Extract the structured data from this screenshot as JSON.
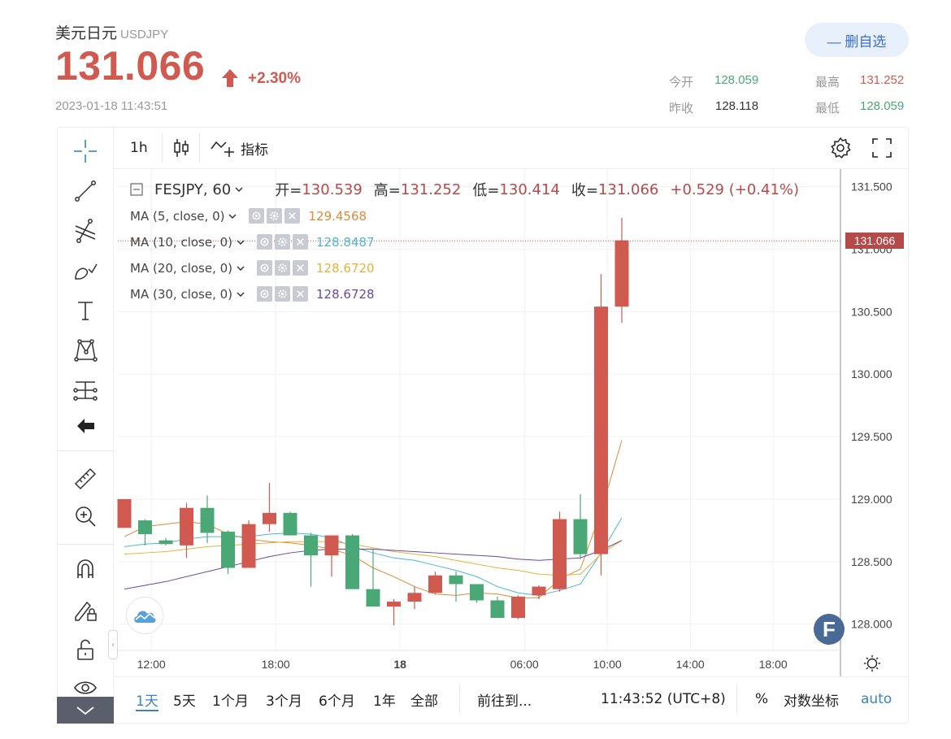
{
  "header": {
    "name": "美元日元",
    "symbol": "USDJPY",
    "price": "131.066",
    "change_pct": "+2.30%",
    "timestamp": "2023-01-18 11:43:51",
    "unfavorite_label": "— 删自选",
    "stats": {
      "open_label": "今开",
      "open_value": "128.059",
      "high_label": "最高",
      "high_value": "131.252",
      "prev_close_label": "昨收",
      "prev_close_value": "128.118",
      "low_label": "最低",
      "low_value": "128.059"
    },
    "colors": {
      "up": "#d05a50",
      "down": "#4aa877",
      "accent": "#3b6ed2"
    }
  },
  "toolbar": {
    "interval": "1h",
    "indicators_label": "指标"
  },
  "left_tools": [
    "crosshair-icon",
    "trend-line-icon",
    "fib-icon",
    "brush-icon",
    "text-icon",
    "pattern-icon",
    "prediction-icon",
    "back-arrow-icon",
    "ruler-icon",
    "zoom-in-icon",
    "magnet-icon",
    "lock-draw-icon",
    "lock-icon",
    "eye-icon"
  ],
  "legend": {
    "symbol": "FESJPY, 60",
    "open_label": "开=",
    "open": "130.539",
    "high_label": "高=",
    "high": "131.252",
    "low_label": "低=",
    "low": "130.414",
    "close_label": "收=",
    "close": "131.066",
    "change": "+0.529 (+0.41%)",
    "ma": [
      {
        "label": "MA (5, close, 0)",
        "value": "129.4568",
        "color": "#e08a3a"
      },
      {
        "label": "MA (10, close, 0)",
        "value": "128.8487",
        "color": "#4fb6d0"
      },
      {
        "label": "MA (20, close, 0)",
        "value": "128.6720",
        "color": "#e4b43a"
      },
      {
        "label": "MA (30, close, 0)",
        "value": "128.6728",
        "color": "#6a4a9a"
      }
    ]
  },
  "chart_data": {
    "type": "candlestick",
    "y_ticks": [
      "131.500",
      "131.000",
      "130.500",
      "130.000",
      "129.500",
      "129.000",
      "128.500",
      "128.000"
    ],
    "ylim": [
      127.79,
      131.64
    ],
    "x_ticks": [
      {
        "label": "12:00",
        "bar": 1.3
      },
      {
        "label": "18:00",
        "bar": 7.3
      },
      {
        "label": "18",
        "bar": 13.3,
        "bold": true
      },
      {
        "label": "06:00",
        "bar": 19.3
      },
      {
        "label": "10:00",
        "bar": 23.3
      },
      {
        "label": "14:00",
        "bar": 27.3
      },
      {
        "label": "18:00",
        "bar": 31.3
      }
    ],
    "current_price": "131.066",
    "candles": [
      {
        "o": 128.77,
        "h": 129.0,
        "l": 128.77,
        "c": 129.0
      },
      {
        "o": 128.83,
        "h": 128.84,
        "l": 128.63,
        "c": 128.72
      },
      {
        "o": 128.67,
        "h": 128.69,
        "l": 128.63,
        "c": 128.64
      },
      {
        "o": 128.63,
        "h": 128.97,
        "l": 128.53,
        "c": 128.93
      },
      {
        "o": 128.93,
        "h": 129.03,
        "l": 128.65,
        "c": 128.73
      },
      {
        "o": 128.74,
        "h": 128.75,
        "l": 128.4,
        "c": 128.45
      },
      {
        "o": 128.45,
        "h": 128.83,
        "l": 128.45,
        "c": 128.8
      },
      {
        "o": 128.8,
        "h": 129.13,
        "l": 128.74,
        "c": 128.89
      },
      {
        "o": 128.89,
        "h": 128.9,
        "l": 128.71,
        "c": 128.71
      },
      {
        "o": 128.71,
        "h": 128.73,
        "l": 128.3,
        "c": 128.55
      },
      {
        "o": 128.55,
        "h": 128.71,
        "l": 128.38,
        "c": 128.71
      },
      {
        "o": 128.71,
        "h": 128.72,
        "l": 128.28,
        "c": 128.28
      },
      {
        "o": 128.28,
        "h": 128.6,
        "l": 128.15,
        "c": 128.14
      },
      {
        "o": 128.14,
        "h": 128.2,
        "l": 127.99,
        "c": 128.18
      },
      {
        "o": 128.18,
        "h": 128.3,
        "l": 128.12,
        "c": 128.25
      },
      {
        "o": 128.25,
        "h": 128.42,
        "l": 128.24,
        "c": 128.39
      },
      {
        "o": 128.39,
        "h": 128.42,
        "l": 128.18,
        "c": 128.32
      },
      {
        "o": 128.32,
        "h": 128.32,
        "l": 128.17,
        "c": 128.19
      },
      {
        "o": 128.19,
        "h": 128.22,
        "l": 128.05,
        "c": 128.05
      },
      {
        "o": 128.05,
        "h": 128.23,
        "l": 128.04,
        "c": 128.22
      },
      {
        "o": 128.23,
        "h": 128.31,
        "l": 128.2,
        "c": 128.3
      },
      {
        "o": 128.28,
        "h": 128.9,
        "l": 128.26,
        "c": 128.84
      },
      {
        "o": 128.84,
        "h": 129.04,
        "l": 128.52,
        "c": 128.56
      },
      {
        "o": 128.56,
        "h": 130.8,
        "l": 128.39,
        "c": 130.54
      },
      {
        "o": 130.54,
        "h": 131.25,
        "l": 130.41,
        "c": 131.07
      }
    ],
    "ma_series": [
      {
        "name": "MA (5, close, 0)",
        "color": "#e08a3a",
        "start": 0,
        "values": [
          128.7,
          128.78,
          128.8,
          128.82,
          128.8,
          128.72,
          128.68,
          128.66,
          128.65,
          128.63,
          128.6,
          128.55,
          128.45,
          128.38,
          128.3,
          128.24,
          128.23,
          128.25,
          128.24,
          128.21,
          128.21,
          128.36,
          128.44,
          128.9,
          129.47
        ]
      },
      {
        "name": "MA (10, close, 0)",
        "color": "#4fb6d0",
        "start": 0,
        "values": [
          128.62,
          128.64,
          128.65,
          128.68,
          128.7,
          128.7,
          128.7,
          128.72,
          128.73,
          128.72,
          128.69,
          128.62,
          128.57,
          128.53,
          128.51,
          128.47,
          128.43,
          128.38,
          128.3,
          128.25,
          128.23,
          128.27,
          128.32,
          128.57,
          128.85
        ]
      },
      {
        "name": "MA (20, close, 0)",
        "color": "#e4b43a",
        "start": 0,
        "values": [
          128.56,
          128.57,
          128.58,
          128.6,
          128.62,
          128.63,
          128.64,
          128.65,
          128.66,
          128.66,
          128.66,
          128.64,
          128.61,
          128.58,
          128.56,
          128.54,
          128.51,
          128.48,
          128.45,
          128.43,
          128.4,
          128.39,
          128.4,
          128.56,
          128.67
        ]
      },
      {
        "name": "MA (30, close, 0)",
        "color": "#6a4a9a",
        "start": 0,
        "values": [
          128.28,
          128.31,
          128.34,
          128.38,
          128.42,
          128.46,
          128.5,
          128.54,
          128.57,
          128.59,
          128.6,
          128.6,
          128.6,
          128.59,
          128.58,
          128.57,
          128.56,
          128.55,
          128.54,
          128.52,
          128.51,
          128.52,
          128.53,
          128.59,
          128.67
        ]
      }
    ]
  },
  "bottom_bar": {
    "ranges": [
      "1天",
      "5天",
      "1个月",
      "3个月",
      "6个月",
      "1年",
      "全部"
    ],
    "goto_label": "前往到...",
    "clock": "11:43:52 (UTC+8)",
    "percent_label": "%",
    "log_label": "对数坐标",
    "auto_label": "auto"
  }
}
